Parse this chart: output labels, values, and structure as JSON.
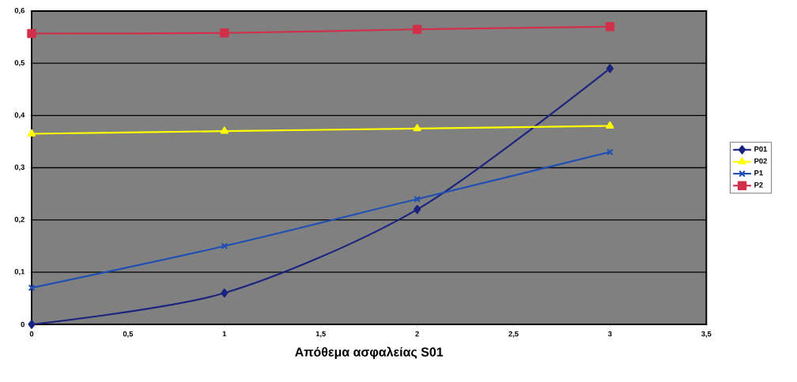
{
  "chart_data": {
    "type": "line",
    "xlabel": "Απόθεμα ασφαλείας S01",
    "x": [
      0,
      1,
      2,
      3
    ],
    "series": [
      {
        "name": "P01",
        "color": "#1a237e",
        "marker": "diamond",
        "values": [
          0,
          0.06,
          0.22,
          0.49
        ]
      },
      {
        "name": "P02",
        "color": "#ffff00",
        "marker": "triangle",
        "values": [
          0.365,
          0.37,
          0.375,
          0.38
        ]
      },
      {
        "name": "P1",
        "color": "#1f4fb4",
        "marker": "cross",
        "values": [
          0.07,
          0.15,
          0.24,
          0.33
        ]
      },
      {
        "name": "P2",
        "color": "#d0304a",
        "marker": "square",
        "values": [
          0.557,
          0.558,
          0.565,
          0.57
        ]
      }
    ],
    "xlim": [
      0,
      3.5
    ],
    "ylim": [
      0,
      0.6
    ],
    "xticks": [
      0,
      {
        "value": 0.5,
        "label": "0,5"
      },
      1,
      {
        "value": 1.5,
        "label": "1,5"
      },
      2,
      {
        "value": 2.5,
        "label": "2,5"
      },
      3,
      {
        "value": 3.5,
        "label": "3,5"
      }
    ],
    "yticks": [
      0,
      {
        "value": 0.1,
        "label": "0,1"
      },
      {
        "value": 0.2,
        "label": "0,2"
      },
      {
        "value": 0.3,
        "label": "0,3"
      },
      {
        "value": 0.4,
        "label": "0,4"
      },
      {
        "value": 0.5,
        "label": "0,5"
      },
      {
        "value": 0.6,
        "label": "0,6"
      }
    ],
    "grid": "y",
    "legend": "right"
  }
}
